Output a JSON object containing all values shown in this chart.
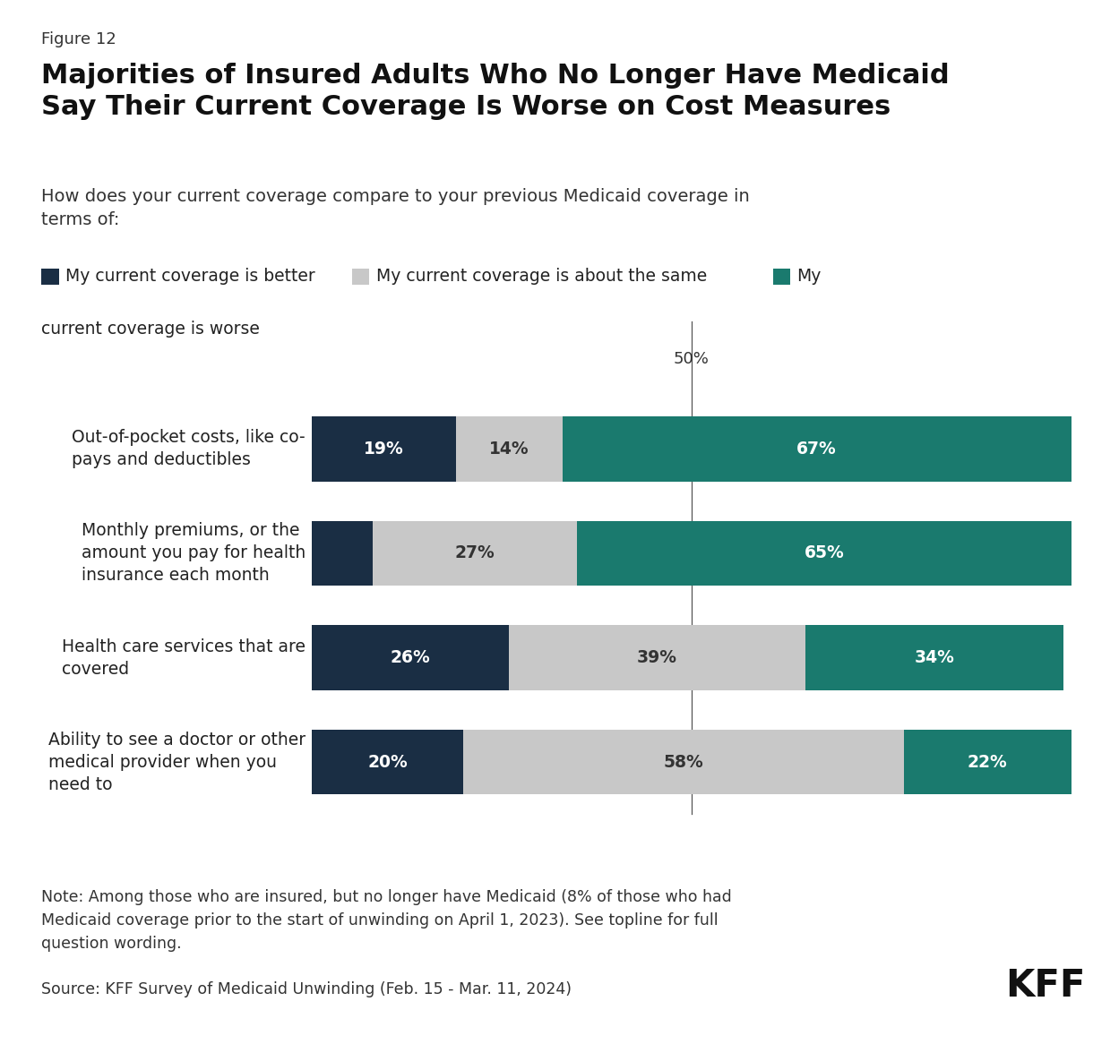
{
  "figure_label": "Figure 12",
  "title": "Majorities of Insured Adults Who No Longer Have Medicaid\nSay Their Current Coverage Is Worse on Cost Measures",
  "subtitle": "How does your current coverage compare to your previous Medicaid coverage in\nterms of:",
  "legend_labels": [
    "My current coverage is better",
    "My current coverage is about the same",
    "My current coverage is worse"
  ],
  "categories": [
    "Out-of-pocket costs, like co-\npays and deductibles",
    "Monthly premiums, or the\namount you pay for health\ninsurance each month",
    "Health care services that are\ncovered",
    "Ability to see a doctor or other\nmedical provider when you\nneed to"
  ],
  "better": [
    19,
    8,
    26,
    20
  ],
  "same": [
    14,
    27,
    39,
    58
  ],
  "worse": [
    67,
    65,
    34,
    22
  ],
  "show_better_label": [
    true,
    false,
    true,
    true
  ],
  "same_label_color": [
    "#333333",
    "#333333",
    "#333333",
    "#333333"
  ],
  "color_better": "#1a2e44",
  "color_same": "#c8c8c8",
  "color_worse": "#1a7a6e",
  "note": "Note: Among those who are insured, but no longer have Medicaid (8% of those who had\nMedicaid coverage prior to the start of unwinding on April 1, 2023). See topline for full\nquestion wording.",
  "source": "Source: KFF Survey of Medicaid Unwinding (Feb. 15 - Mar. 11, 2024)",
  "fifty_pct_label": "50%",
  "bar_height": 0.62,
  "background_color": "#ffffff"
}
